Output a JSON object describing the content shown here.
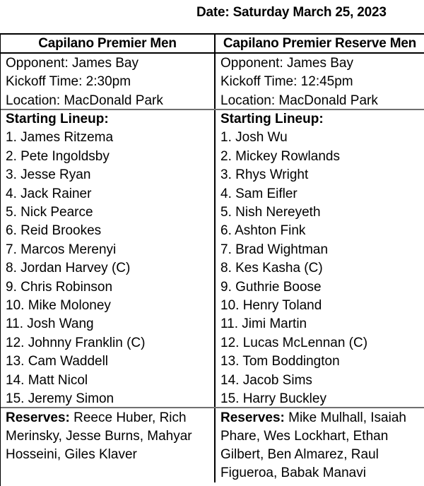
{
  "date_heading": "Date: Saturday March 25, 2023",
  "columns": [
    {
      "team": "Capilano Premier Men",
      "opponent": "Opponent: James Bay",
      "kickoff": "Kickoff Time: 2:30pm",
      "location": "Location: MacDonald Park",
      "lineup_heading": "Starting Lineup:",
      "lineup": [
        "1. James Ritzema",
        "2. Pete Ingoldsby",
        "3. Jesse Ryan",
        "4. Jack Rainer",
        "5. Nick Pearce",
        "6. Reid Brookes",
        "7. Marcos Merenyi",
        "8. Jordan Harvey (C)",
        "9. Chris Robinson",
        "10. Mike Moloney",
        "11. Josh Wang",
        "12. Johnny Franklin (C)",
        "13. Cam Waddell",
        "14. Matt Nicol",
        "15. Jeremy Simon"
      ],
      "reserves_label": "Reserves:",
      "reserves_lines": [
        "Reece Huber, Rich",
        "Merinsky, Jesse Burns, Mahyar",
        "Hosseini, Giles Klaver"
      ]
    },
    {
      "team": "Capilano Premier Reserve Men",
      "opponent": "Opponent: James Bay",
      "kickoff": "Kickoff Time: 12:45pm",
      "location": "Location: MacDonald Park",
      "lineup_heading": "Starting Lineup:",
      "lineup": [
        "1. Josh Wu",
        "2. Mickey Rowlands",
        "3. Rhys Wright",
        "4. Sam Eifler",
        "5. Nish Nereyeth",
        "6. Ashton Fink",
        "7. Brad Wightman",
        "8. Kes Kasha (C)",
        "9. Guthrie Boose",
        "10. Henry Toland",
        "11. Jimi Martin",
        "12. Lucas McLennan (C)",
        "13. Tom Boddington",
        "14. Jacob Sims",
        "15. Harry Buckley"
      ],
      "reserves_label": "Reserves:",
      "reserves_lines": [
        "Mike Mulhall, Isaiah",
        "Phare, Wes Lockhart, Ethan",
        "Gilbert, Ben Almarez, Raul",
        "Figueroa, Babak Manavi"
      ]
    }
  ],
  "colors": {
    "text": "#000000",
    "black_rule": "#000000",
    "gray_rule": "#707070",
    "background": "#ffffff"
  }
}
